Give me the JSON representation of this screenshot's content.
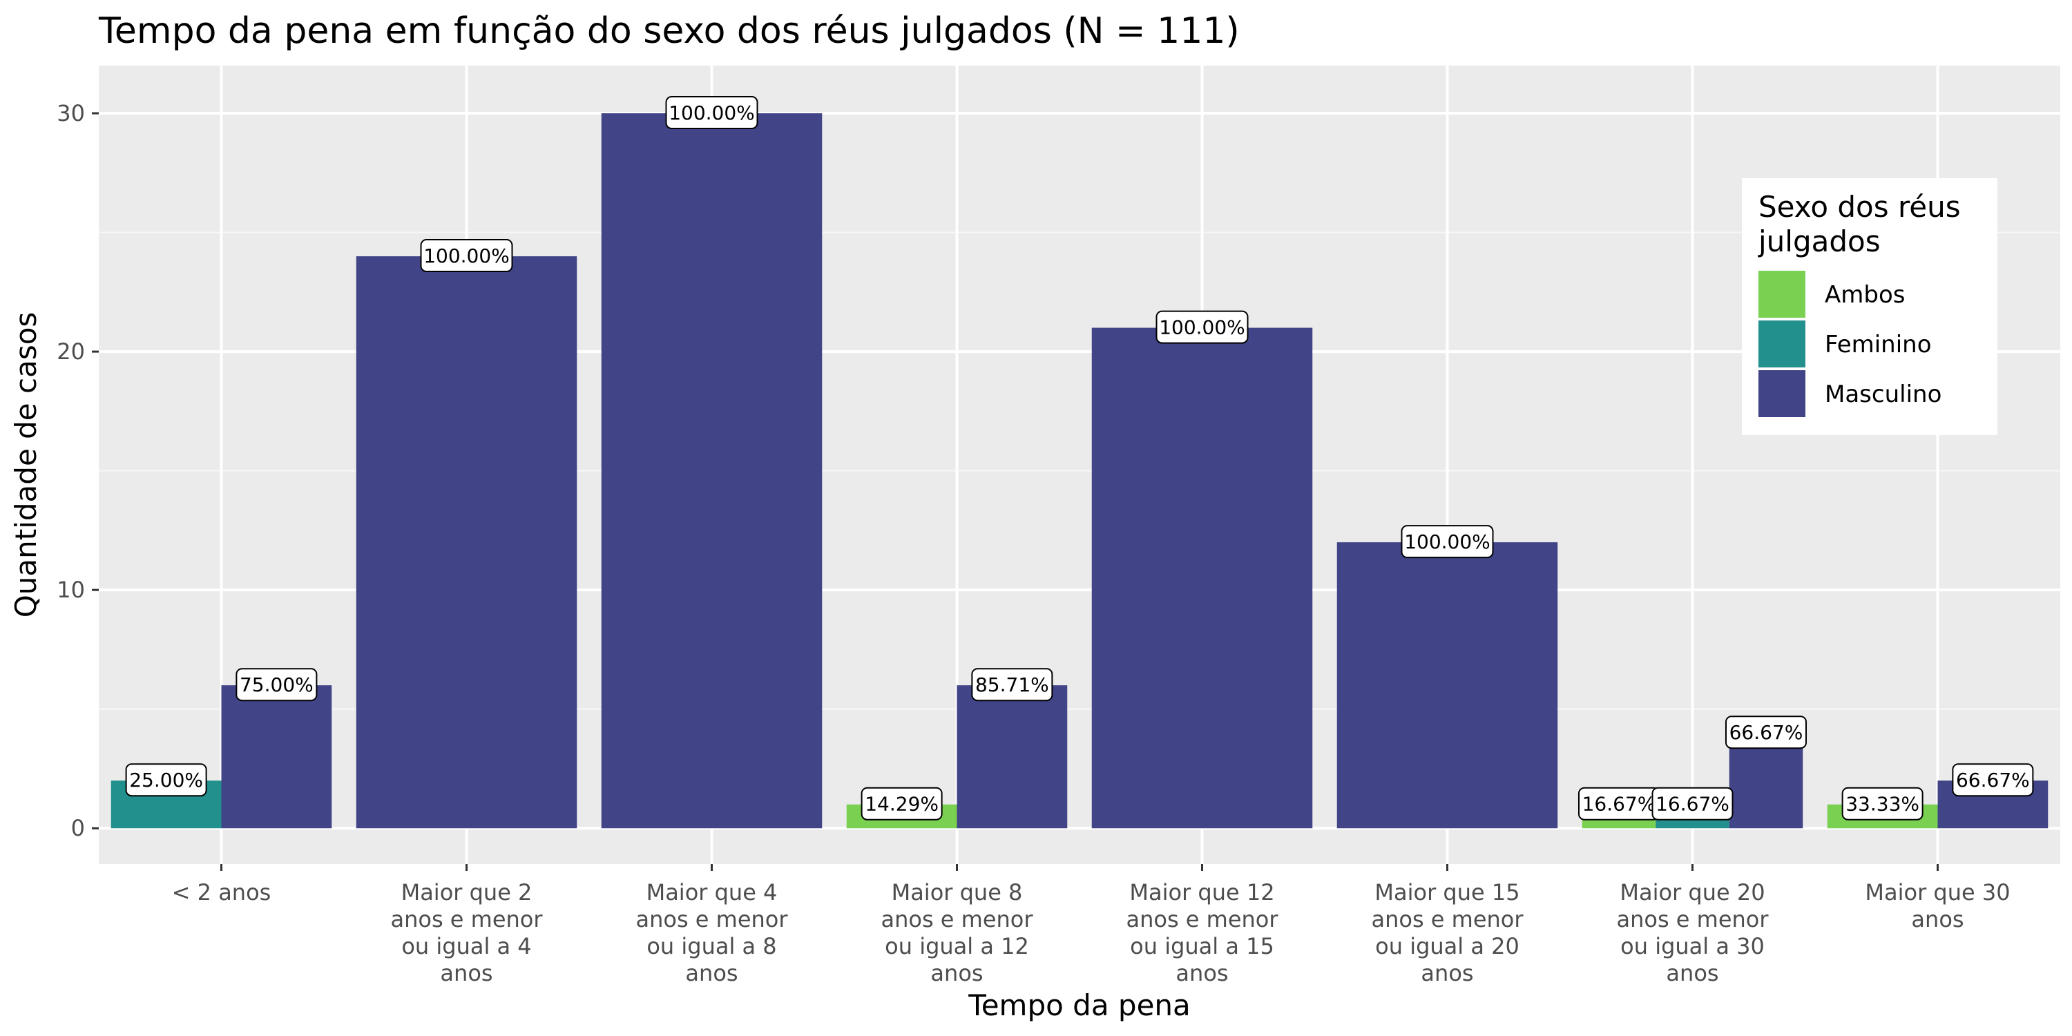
{
  "chart_data": {
    "type": "bar",
    "title": "Tempo da pena em função do sexo dos réus julgados (N = 111)",
    "xlabel": "Tempo da pena",
    "ylabel": "Quantidade de casos",
    "ylim": [
      -1.5,
      32
    ],
    "yticks": [
      0,
      10,
      20,
      30
    ],
    "grid": true,
    "legend": {
      "title": "Sexo dos réus julgados",
      "position": "top-right",
      "entries": [
        {
          "name": "Ambos",
          "color": "#7AD151"
        },
        {
          "name": "Feminino",
          "color": "#22908C"
        },
        {
          "name": "Masculino",
          "color": "#414487"
        }
      ]
    },
    "categories": [
      "< 2 anos",
      "Maior que 2 anos e menor ou igual a 4 anos",
      "Maior que 4 anos e menor ou igual a 8 anos",
      "Maior que 8 anos e menor ou igual a 12 anos",
      "Maior que 12 anos e menor ou igual a 15 anos",
      "Maior que 15 anos e menor ou igual a 20 anos",
      "Maior que 20 anos e menor ou igual a 30 anos",
      "Maior que 30 anos"
    ],
    "category_tick_lines": [
      [
        "< 2 anos"
      ],
      [
        "Maior que 2",
        "anos e menor",
        "ou igual a 4",
        "anos"
      ],
      [
        "Maior que 4",
        "anos e menor",
        "ou igual a 8",
        "anos"
      ],
      [
        "Maior que 8",
        "anos e menor",
        "ou igual a 12",
        "anos"
      ],
      [
        "Maior que 12",
        "anos e menor",
        "ou igual a 15",
        "anos"
      ],
      [
        "Maior que 15",
        "anos e menor",
        "ou igual a 20",
        "anos"
      ],
      [
        "Maior que 20",
        "anos e menor",
        "ou igual a 30",
        "anos"
      ],
      [
        "Maior que 30",
        "anos"
      ]
    ],
    "bars": [
      {
        "category_index": 0,
        "group": "Feminino",
        "value": 2,
        "label": "25.00%"
      },
      {
        "category_index": 0,
        "group": "Masculino",
        "value": 6,
        "label": "75.00%"
      },
      {
        "category_index": 1,
        "group": "Masculino",
        "value": 24,
        "label": "100.00%"
      },
      {
        "category_index": 2,
        "group": "Masculino",
        "value": 30,
        "label": "100.00%"
      },
      {
        "category_index": 3,
        "group": "Ambos",
        "value": 1,
        "label": "14.29%"
      },
      {
        "category_index": 3,
        "group": "Masculino",
        "value": 6,
        "label": "85.71%"
      },
      {
        "category_index": 4,
        "group": "Masculino",
        "value": 21,
        "label": "100.00%"
      },
      {
        "category_index": 5,
        "group": "Masculino",
        "value": 12,
        "label": "100.00%"
      },
      {
        "category_index": 6,
        "group": "Ambos",
        "value": 1,
        "label": "16.67%"
      },
      {
        "category_index": 6,
        "group": "Feminino",
        "value": 1,
        "label": "16.67%"
      },
      {
        "category_index": 6,
        "group": "Masculino",
        "value": 4,
        "label": "66.67%"
      },
      {
        "category_index": 7,
        "group": "Ambos",
        "value": 1,
        "label": "33.33%"
      },
      {
        "category_index": 7,
        "group": "Masculino",
        "value": 2,
        "label": "66.67%"
      }
    ]
  }
}
